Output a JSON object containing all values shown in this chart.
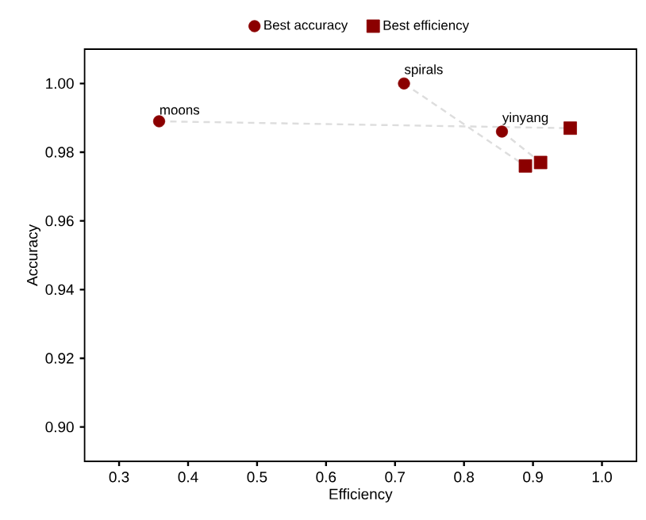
{
  "chart_data": {
    "type": "scatter",
    "xlabel": "Efficiency",
    "ylabel": "Accuracy",
    "xlim": [
      0.25,
      1.05
    ],
    "ylim": [
      0.89,
      1.01
    ],
    "xticks": [
      0.3,
      0.4,
      0.5,
      0.6,
      0.7,
      0.8,
      0.9,
      {
        "value": 1.0,
        "label": "1.0"
      }
    ],
    "yticks": [
      {
        "value": 0.9,
        "label": "0.90"
      },
      0.92,
      0.94,
      0.96,
      0.98,
      {
        "value": 1.0,
        "label": "1.00"
      }
    ],
    "grid": false,
    "legend": "top",
    "series": [
      {
        "type": "line",
        "color": "#dddddd",
        "line_style": "dashed",
        "marker": "none",
        "x": [
          0.358,
          0.954
        ],
        "values": [
          0.989,
          0.987
        ]
      },
      {
        "type": "line",
        "color": "#dddddd",
        "line_style": "dashed",
        "marker": "none",
        "x": [
          0.713,
          0.889
        ],
        "values": [
          1.0,
          0.976
        ]
      },
      {
        "type": "line",
        "color": "#dddddd",
        "line_style": "dashed",
        "marker": "none",
        "x": [
          0.855,
          0.911
        ],
        "values": [
          0.986,
          0.977
        ]
      },
      {
        "name": "Best accuracy",
        "marker": "circle",
        "color": "#8b0000",
        "x": [
          0.358,
          0.713,
          0.855
        ],
        "values": [
          0.989,
          1.0,
          0.986
        ]
      },
      {
        "name": "Best efficiency",
        "marker": "square",
        "color": "#8b0000",
        "x": [
          0.954,
          0.889,
          0.911
        ],
        "values": [
          0.987,
          0.976,
          0.977
        ]
      }
    ],
    "annotations": [
      {
        "text": "moons",
        "x": 0.358,
        "y": 0.989
      },
      {
        "text": "spirals",
        "x": 0.713,
        "y": 1.0
      },
      {
        "text": "yinyang",
        "x": 0.855,
        "y": 0.986
      }
    ]
  }
}
